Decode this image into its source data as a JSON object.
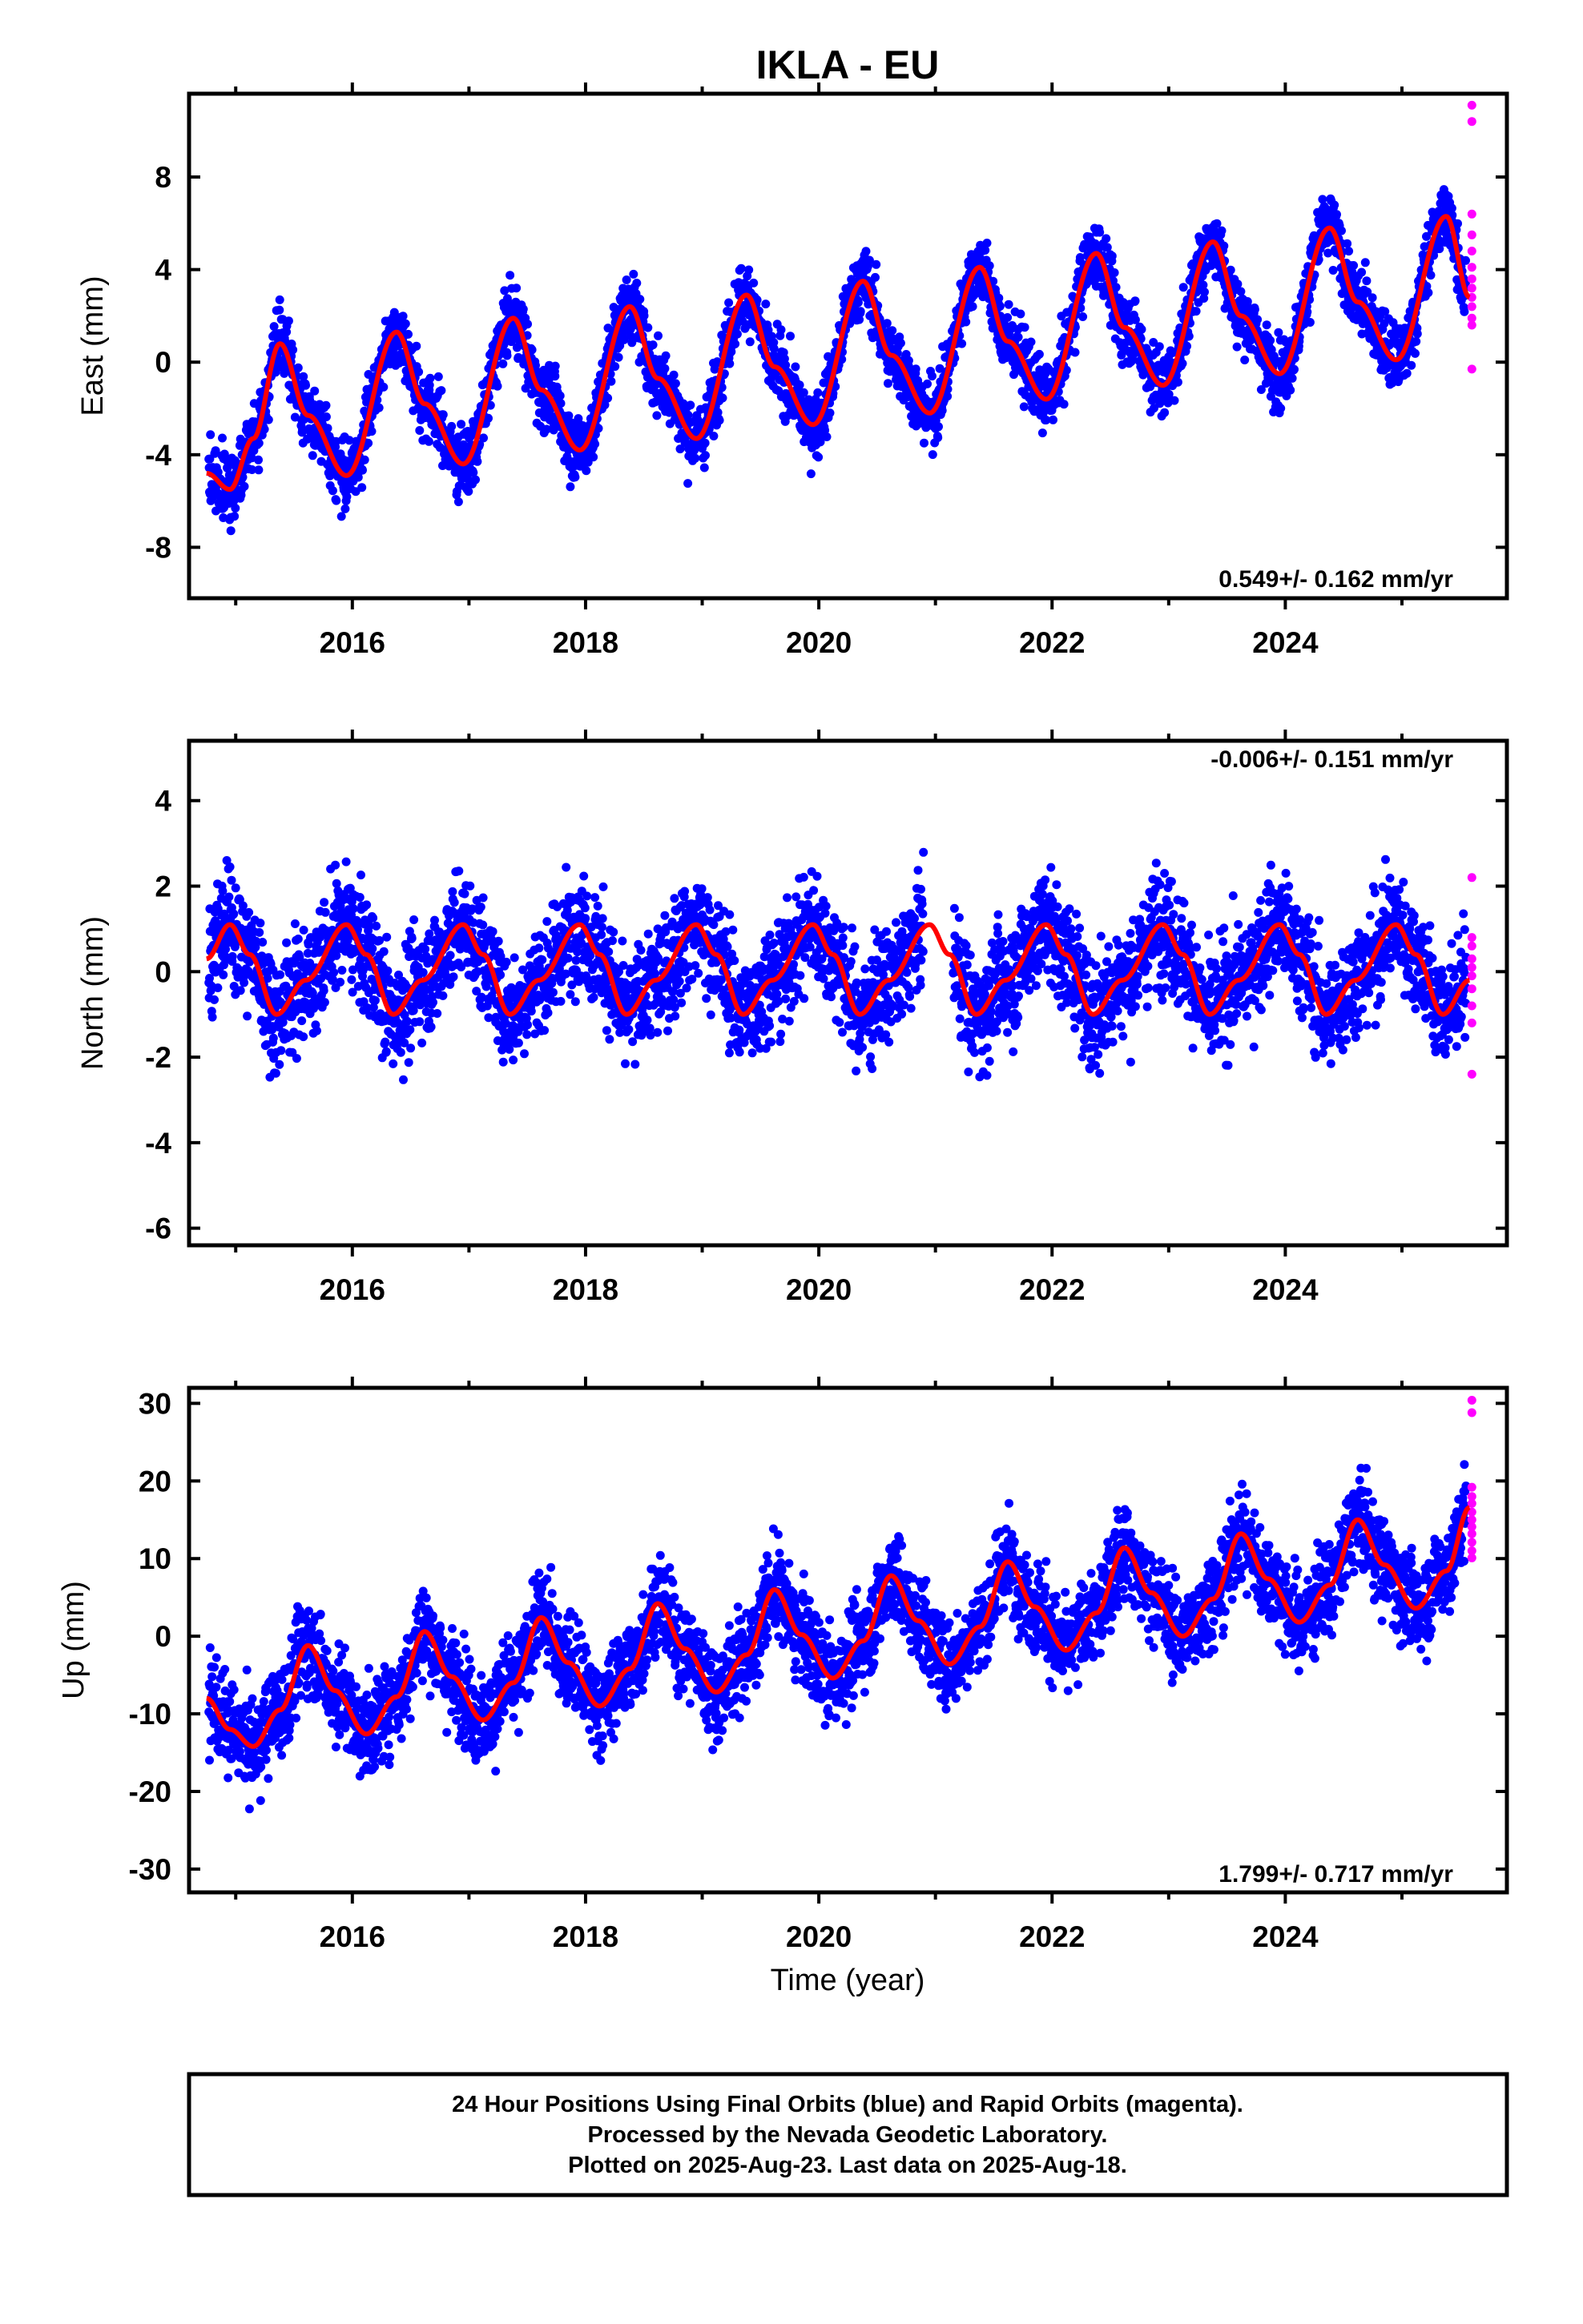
{
  "title": "IKLA - EU",
  "footer": {
    "line1": "24 Hour Positions Using Final Orbits (blue) and Rapid Orbits (magenta).",
    "line2": "Processed by the Nevada Geodetic Laboratory.",
    "line3": "Plotted on 2025-Aug-23. Last data on 2025-Aug-18."
  },
  "colors": {
    "final": "#0000ff",
    "rapid": "#ff00ff",
    "model": "#ff0000"
  },
  "chart_data": [
    {
      "type": "scatter",
      "component": "east",
      "ylabel": "East (mm)",
      "xlabel": "",
      "xlim": [
        2014.6,
        2025.9
      ],
      "ylim": [
        -10.2,
        11.6
      ],
      "yticks": [
        -8,
        -4,
        0,
        4,
        8
      ],
      "xticks": [
        2016,
        2018,
        2020,
        2022,
        2024
      ],
      "rate_label": "0.549+/- 0.162 mm/yr",
      "rate_position": "bottom-right",
      "series": [
        {
          "kind": "final_orbits",
          "data_start": 2014.77,
          "data_end": 2025.55,
          "pattern": "annual cycle about the trend, peaks near mid-year, troughs near year start",
          "trend": 0.549,
          "annual_amplitude": 3.0,
          "scatter": 1.2
        },
        {
          "kind": "rapid_orbits",
          "x": 2025.6,
          "y": [
            11.1,
            10.4,
            6.4,
            5.5,
            4.8,
            4.1,
            3.6,
            3.2,
            2.8,
            2.4,
            1.9,
            1.6,
            -0.3
          ]
        },
        {
          "kind": "model",
          "points": [
            [
              2014.75,
              -4.8
            ],
            [
              2014.95,
              -5.5
            ],
            [
              2015.15,
              -3.3
            ],
            [
              2015.38,
              0.8
            ],
            [
              2015.62,
              -2.3
            ],
            [
              2015.95,
              -4.9
            ],
            [
              2016.38,
              1.3
            ],
            [
              2016.62,
              -1.8
            ],
            [
              2016.95,
              -4.4
            ],
            [
              2017.38,
              1.9
            ],
            [
              2017.62,
              -1.2
            ],
            [
              2017.95,
              -3.8
            ],
            [
              2018.38,
              2.4
            ],
            [
              2018.62,
              -0.7
            ],
            [
              2018.95,
              -3.3
            ],
            [
              2019.38,
              2.9
            ],
            [
              2019.62,
              -0.2
            ],
            [
              2019.95,
              -2.7
            ],
            [
              2020.38,
              3.5
            ],
            [
              2020.62,
              0.3
            ],
            [
              2020.95,
              -2.2
            ],
            [
              2021.38,
              4.1
            ],
            [
              2021.62,
              0.9
            ],
            [
              2021.95,
              -1.6
            ],
            [
              2022.38,
              4.7
            ],
            [
              2022.62,
              1.5
            ],
            [
              2022.95,
              -1.0
            ],
            [
              2023.38,
              5.2
            ],
            [
              2023.62,
              2.0
            ],
            [
              2023.95,
              -0.5
            ],
            [
              2024.38,
              5.8
            ],
            [
              2024.62,
              2.6
            ],
            [
              2024.95,
              0.1
            ],
            [
              2025.38,
              6.3
            ],
            [
              2025.58,
              2.8
            ]
          ]
        }
      ]
    },
    {
      "type": "scatter",
      "component": "north",
      "ylabel": "North (mm)",
      "xlabel": "",
      "xlim": [
        2014.6,
        2025.9
      ],
      "ylim": [
        -6.4,
        5.4
      ],
      "yticks": [
        -6,
        -4,
        -2,
        0,
        2,
        4
      ],
      "xticks": [
        2016,
        2018,
        2020,
        2022,
        2024
      ],
      "rate_label": "-0.006+/- 0.151 mm/yr",
      "rate_position": "top-right",
      "series": [
        {
          "kind": "final_orbits",
          "data_start": 2014.77,
          "data_end": 2025.55,
          "pattern": "semi-annual oscillation about zero, data gap early 2021",
          "trend": -0.006,
          "annual_amplitude": 1.0,
          "scatter": 1.1
        },
        {
          "kind": "rapid_orbits",
          "x": 2025.6,
          "y": [
            2.2,
            0.8,
            0.6,
            0.3,
            0.1,
            -0.1,
            -0.4,
            -0.8,
            -1.2,
            -2.4
          ]
        },
        {
          "kind": "model",
          "points": [
            [
              2014.75,
              0.3
            ],
            [
              2014.95,
              1.1
            ],
            [
              2015.12,
              0.4
            ],
            [
              2015.35,
              -1.0
            ],
            [
              2015.6,
              -0.2
            ],
            [
              2015.95,
              1.1
            ],
            [
              2016.12,
              0.4
            ],
            [
              2016.35,
              -1.0
            ],
            [
              2016.6,
              -0.2
            ],
            [
              2016.95,
              1.1
            ],
            [
              2017.12,
              0.4
            ],
            [
              2017.35,
              -1.0
            ],
            [
              2017.6,
              -0.2
            ],
            [
              2017.95,
              1.1
            ],
            [
              2018.12,
              0.4
            ],
            [
              2018.35,
              -1.0
            ],
            [
              2018.6,
              -0.2
            ],
            [
              2018.95,
              1.1
            ],
            [
              2019.12,
              0.4
            ],
            [
              2019.35,
              -1.0
            ],
            [
              2019.6,
              -0.2
            ],
            [
              2019.95,
              1.1
            ],
            [
              2020.12,
              0.4
            ],
            [
              2020.35,
              -1.0
            ],
            [
              2020.6,
              -0.2
            ],
            [
              2020.95,
              1.1
            ],
            [
              2021.12,
              0.4
            ],
            [
              2021.35,
              -1.0
            ],
            [
              2021.6,
              -0.2
            ],
            [
              2021.95,
              1.1
            ],
            [
              2022.12,
              0.4
            ],
            [
              2022.35,
              -1.0
            ],
            [
              2022.6,
              -0.2
            ],
            [
              2022.95,
              1.1
            ],
            [
              2023.12,
              0.4
            ],
            [
              2023.35,
              -1.0
            ],
            [
              2023.6,
              -0.2
            ],
            [
              2023.95,
              1.1
            ],
            [
              2024.12,
              0.4
            ],
            [
              2024.35,
              -1.0
            ],
            [
              2024.6,
              -0.2
            ],
            [
              2024.95,
              1.1
            ],
            [
              2025.12,
              0.4
            ],
            [
              2025.35,
              -1.0
            ],
            [
              2025.58,
              -0.2
            ]
          ]
        }
      ]
    },
    {
      "type": "scatter",
      "component": "up",
      "ylabel": "Up (mm)",
      "xlabel": "Time (year)",
      "xlim": [
        2014.6,
        2025.9
      ],
      "ylim": [
        -33,
        32
      ],
      "yticks": [
        -30,
        -20,
        -10,
        0,
        10,
        20,
        30
      ],
      "xticks": [
        2016,
        2018,
        2020,
        2022,
        2024
      ],
      "rate_label": "1.799+/- 0.717 mm/yr",
      "rate_position": "bottom-right",
      "series": [
        {
          "kind": "final_orbits",
          "data_start": 2014.77,
          "data_end": 2025.55,
          "pattern": "annual cycle about rising trend, peaks near August, troughs near February",
          "trend": 1.799,
          "annual_amplitude": 7.0,
          "scatter": 5.0
        },
        {
          "kind": "rapid_orbits",
          "x": 2025.6,
          "y": [
            30.4,
            28.8,
            19.2,
            18.0,
            17.1,
            16.0,
            15.0,
            14.1,
            13.2,
            12.1,
            11.0,
            10.1
          ]
        },
        {
          "kind": "model",
          "points": [
            [
              2014.75,
              -8.0
            ],
            [
              2014.95,
              -12.0
            ],
            [
              2015.15,
              -14.2
            ],
            [
              2015.38,
              -9.5
            ],
            [
              2015.62,
              -1.2
            ],
            [
              2015.85,
              -7.0
            ],
            [
              2016.12,
              -12.6
            ],
            [
              2016.38,
              -7.8
            ],
            [
              2016.62,
              0.6
            ],
            [
              2016.85,
              -5.2
            ],
            [
              2017.12,
              -10.8
            ],
            [
              2017.38,
              -6.0
            ],
            [
              2017.62,
              2.4
            ],
            [
              2017.85,
              -3.4
            ],
            [
              2018.12,
              -9.0
            ],
            [
              2018.38,
              -4.2
            ],
            [
              2018.62,
              4.2
            ],
            [
              2018.85,
              -1.6
            ],
            [
              2019.12,
              -7.2
            ],
            [
              2019.38,
              -2.4
            ],
            [
              2019.62,
              6.0
            ],
            [
              2019.85,
              0.2
            ],
            [
              2020.12,
              -5.4
            ],
            [
              2020.38,
              -0.6
            ],
            [
              2020.62,
              7.8
            ],
            [
              2020.85,
              2.0
            ],
            [
              2021.12,
              -3.6
            ],
            [
              2021.38,
              1.2
            ],
            [
              2021.62,
              9.6
            ],
            [
              2021.85,
              3.8
            ],
            [
              2022.12,
              -1.8
            ],
            [
              2022.38,
              3.0
            ],
            [
              2022.62,
              11.4
            ],
            [
              2022.85,
              5.6
            ],
            [
              2023.12,
              0.0
            ],
            [
              2023.38,
              4.8
            ],
            [
              2023.62,
              13.2
            ],
            [
              2023.85,
              7.4
            ],
            [
              2024.12,
              1.8
            ],
            [
              2024.38,
              6.6
            ],
            [
              2024.62,
              15.0
            ],
            [
              2024.85,
              9.2
            ],
            [
              2025.12,
              3.6
            ],
            [
              2025.38,
              8.4
            ],
            [
              2025.58,
              16.6
            ]
          ]
        }
      ]
    }
  ]
}
